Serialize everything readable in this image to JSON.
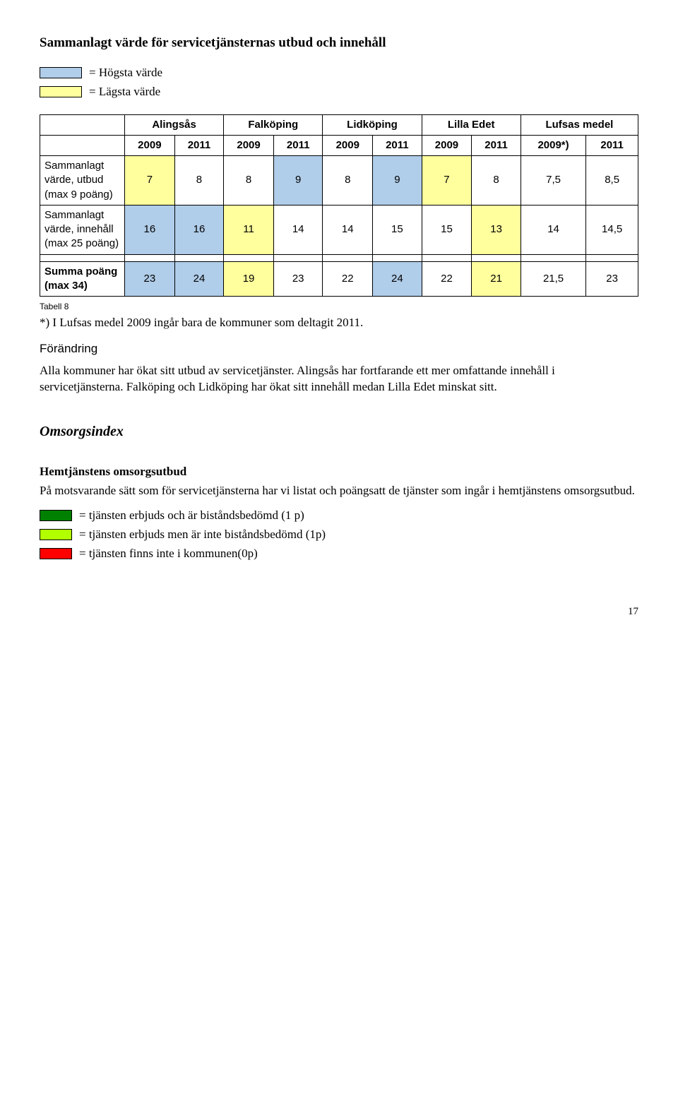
{
  "heading": "Sammanlagt värde för servicetjänsternas utbud och innehåll",
  "legend": {
    "highest": {
      "label": "= Högsta värde",
      "color": "#b0cde9"
    },
    "lowest": {
      "label": "= Lägsta värde",
      "color": "#ffff9e"
    }
  },
  "table": {
    "group_headers": [
      "",
      "Alingsås",
      "Falköping",
      "Lidköping",
      "Lilla Edet",
      "Lufsas medel"
    ],
    "year_headers": [
      "2009",
      "2011",
      "2009",
      "2011",
      "2009",
      "2011",
      "2009",
      "2011",
      "2009*)",
      "2011"
    ],
    "rows": [
      {
        "label_html": "Sammanlagt värde, utbud (max 9 poäng)",
        "cells": [
          {
            "v": "7",
            "c": "#ffff9e"
          },
          {
            "v": "8",
            "c": ""
          },
          {
            "v": "8",
            "c": ""
          },
          {
            "v": "9",
            "c": "#b0cde9"
          },
          {
            "v": "8",
            "c": ""
          },
          {
            "v": "9",
            "c": "#b0cde9"
          },
          {
            "v": "7",
            "c": "#ffff9e"
          },
          {
            "v": "8",
            "c": ""
          },
          {
            "v": "7,5",
            "c": ""
          },
          {
            "v": "8,5",
            "c": ""
          }
        ]
      },
      {
        "label_html": "Sammanlagt värde, innehåll (max 25 poäng)",
        "cells": [
          {
            "v": "16",
            "c": "#b0cde9"
          },
          {
            "v": "16",
            "c": "#b0cde9"
          },
          {
            "v": "11",
            "c": "#ffff9e"
          },
          {
            "v": "14",
            "c": ""
          },
          {
            "v": "14",
            "c": ""
          },
          {
            "v": "15",
            "c": ""
          },
          {
            "v": "15",
            "c": ""
          },
          {
            "v": "13",
            "c": "#ffff9e"
          },
          {
            "v": "14",
            "c": ""
          },
          {
            "v": "14,5",
            "c": ""
          }
        ]
      }
    ],
    "sum_row": {
      "label_html": "Summa poäng (max 34)",
      "bold": true,
      "cells": [
        {
          "v": "23",
          "c": "#b0cde9"
        },
        {
          "v": "24",
          "c": "#b0cde9"
        },
        {
          "v": "19",
          "c": "#ffff9e"
        },
        {
          "v": "23",
          "c": ""
        },
        {
          "v": "22",
          "c": ""
        },
        {
          "v": "24",
          "c": "#b0cde9"
        },
        {
          "v": "22",
          "c": ""
        },
        {
          "v": "21",
          "c": "#ffff9e"
        },
        {
          "v": "21,5",
          "c": ""
        },
        {
          "v": "23",
          "c": ""
        }
      ]
    }
  },
  "table_caption": "Tabell 8",
  "table_note": "*) I Lufsas medel 2009 ingår bara de kommuner som deltagit 2011.",
  "forandring_head": "Förändring",
  "forandring_body": "Alla kommuner har ökat sitt utbud av servicetjänster. Alingsås har fortfarande ett mer omfattande innehåll i servicetjänsterna. Falköping och Lidköping har ökat sitt innehåll medan Lilla Edet minskat sitt.",
  "omsorg_head": "Omsorgsindex",
  "hemtj_head": "Hemtjänstens omsorgsutbud",
  "hemtj_body": "På motsvarande sätt som för servicetjänsterna har vi listat och poängsatt de tjänster som ingår i hemtjänstens omsorgsutbud.",
  "legend2": [
    {
      "color": "#008000",
      "label": "= tjänsten erbjuds och är biståndsbedömd (1 p)"
    },
    {
      "color": "#b2ff00",
      "label": "= tjänsten erbjuds men är inte biståndsbedömd (1p)"
    },
    {
      "color": "#ff0000",
      "label": "= tjänsten finns inte i kommunen(0p)"
    }
  ],
  "page_number": "17"
}
